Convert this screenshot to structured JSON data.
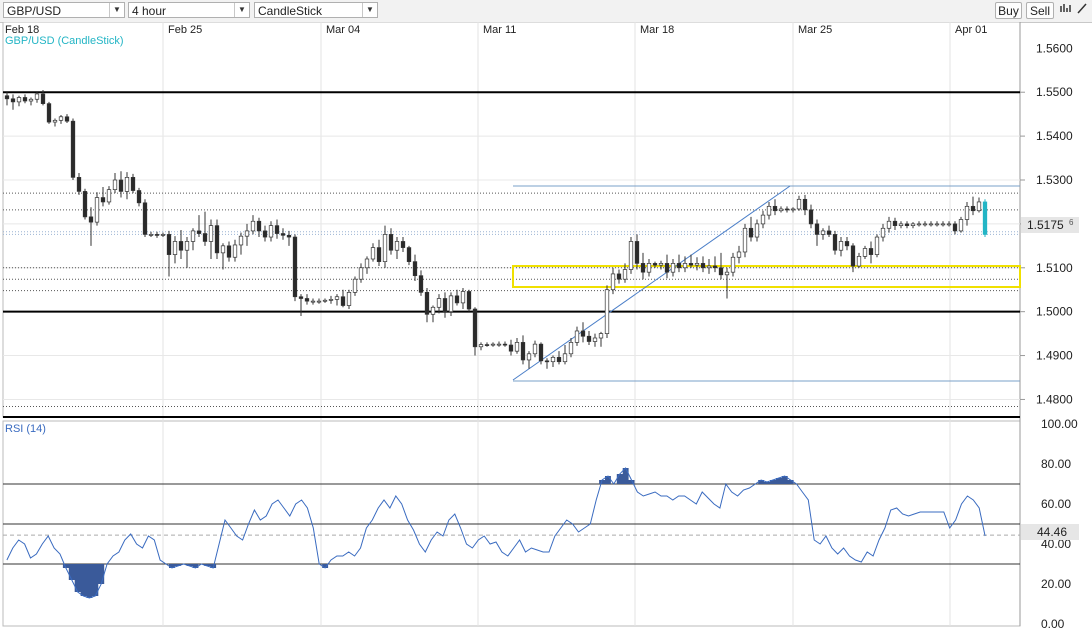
{
  "toolbar": {
    "symbol": "GBP/USD",
    "timeframe": "4 hour",
    "chart_type": "CandleStick",
    "buy_label": "Buy",
    "sell_label": "Sell"
  },
  "price_panel": {
    "label": "GBP/USD (CandleStick)",
    "current_price": "1.5175",
    "current_price_super": "6"
  },
  "rsi_panel": {
    "label": "RSI (14)",
    "current_value": "44.46"
  },
  "colors": {
    "candle_up": "#ffffff",
    "candle_down": "#2a2a2a",
    "rsi_line": "#3a6bc0",
    "rsi_fill": "#3a5a9a",
    "label_teal": "#23b5c5",
    "trendline": "#4a7ec8",
    "zone": "#f0e000"
  },
  "chart_data": {
    "type": "candlestick",
    "x_ticks": [
      "Feb 18",
      "Feb 25",
      "Mar 04",
      "Mar 11",
      "Mar 18",
      "Mar 25",
      "Apr 01"
    ],
    "y_ticks": [
      "1.5500",
      "1.5400",
      "1.5300",
      "1.5200",
      "1.5100",
      "1.5000",
      "1.4900",
      "1.4800"
    ],
    "y_top_partial": "1.5600",
    "ylim": [
      1.476,
      1.566
    ],
    "ohlc": [
      [
        1.5492,
        1.55,
        1.547,
        1.5485
      ],
      [
        1.5485,
        1.5495,
        1.546,
        1.5478
      ],
      [
        1.5478,
        1.5492,
        1.5468,
        1.5488
      ],
      [
        1.5488,
        1.5495,
        1.5475,
        1.548
      ],
      [
        1.548,
        1.5488,
        1.547,
        1.5484
      ],
      [
        1.5484,
        1.55,
        1.5476,
        1.5496
      ],
      [
        1.5496,
        1.5505,
        1.547,
        1.5474
      ],
      [
        1.5474,
        1.5478,
        1.5428,
        1.5432
      ],
      [
        1.5432,
        1.544,
        1.5422,
        1.5436
      ],
      [
        1.5436,
        1.5448,
        1.5428,
        1.5444
      ],
      [
        1.5444,
        1.545,
        1.543,
        1.5434
      ],
      [
        1.5434,
        1.544,
        1.53,
        1.5306
      ],
      [
        1.5306,
        1.5316,
        1.5266,
        1.5274
      ],
      [
        1.5274,
        1.528,
        1.521,
        1.5216
      ],
      [
        1.5216,
        1.5238,
        1.515,
        1.5204
      ],
      [
        1.5204,
        1.5272,
        1.5196,
        1.526
      ],
      [
        1.526,
        1.5284,
        1.524,
        1.525
      ],
      [
        1.525,
        1.5286,
        1.5244,
        1.5278
      ],
      [
        1.5278,
        1.5316,
        1.527,
        1.53
      ],
      [
        1.53,
        1.532,
        1.526,
        1.5274
      ],
      [
        1.5274,
        1.5318,
        1.5256,
        1.5306
      ],
      [
        1.5306,
        1.5314,
        1.527,
        1.5276
      ],
      [
        1.5276,
        1.5282,
        1.524,
        1.5248
      ],
      [
        1.5248,
        1.5256,
        1.517,
        1.5176
      ],
      [
        1.5176,
        1.5182,
        1.517,
        1.5176
      ],
      [
        1.5176,
        1.5182,
        1.5168,
        1.5174
      ],
      [
        1.5174,
        1.518,
        1.517,
        1.5176
      ],
      [
        1.5176,
        1.5184,
        1.508,
        1.513
      ],
      [
        1.513,
        1.5172,
        1.511,
        1.516
      ],
      [
        1.516,
        1.5186,
        1.512,
        1.514
      ],
      [
        1.514,
        1.517,
        1.51,
        1.516
      ],
      [
        1.516,
        1.519,
        1.514,
        1.5184
      ],
      [
        1.5184,
        1.522,
        1.517,
        1.5178
      ],
      [
        1.5178,
        1.5228,
        1.515,
        1.516
      ],
      [
        1.516,
        1.521,
        1.512,
        1.5196
      ],
      [
        1.5196,
        1.521,
        1.512,
        1.5134
      ],
      [
        1.5134,
        1.5156,
        1.5096,
        1.515
      ],
      [
        1.515,
        1.516,
        1.5114,
        1.5124
      ],
      [
        1.5124,
        1.5164,
        1.5114,
        1.5152
      ],
      [
        1.5152,
        1.518,
        1.513,
        1.5172
      ],
      [
        1.5172,
        1.52,
        1.515,
        1.5184
      ],
      [
        1.5184,
        1.522,
        1.5176,
        1.5206
      ],
      [
        1.5206,
        1.5214,
        1.517,
        1.5184
      ],
      [
        1.5184,
        1.5196,
        1.516,
        1.517
      ],
      [
        1.517,
        1.5206,
        1.516,
        1.5196
      ],
      [
        1.5196,
        1.521,
        1.5166,
        1.5178
      ],
      [
        1.5178,
        1.519,
        1.5164,
        1.5174
      ],
      [
        1.5174,
        1.5184,
        1.515,
        1.517
      ],
      [
        1.517,
        1.5176,
        1.5024,
        1.5034
      ],
      [
        1.5034,
        1.504,
        1.499,
        1.503
      ],
      [
        1.503,
        1.504,
        1.5016,
        1.5024
      ],
      [
        1.5024,
        1.503,
        1.5016,
        1.5024
      ],
      [
        1.5024,
        1.503,
        1.5018,
        1.5024
      ],
      [
        1.5024,
        1.503,
        1.502,
        1.5026
      ],
      [
        1.5026,
        1.5036,
        1.5018,
        1.5028
      ],
      [
        1.5028,
        1.504,
        1.5014,
        1.5034
      ],
      [
        1.5034,
        1.505,
        1.501,
        1.5014
      ],
      [
        1.5014,
        1.505,
        1.5006,
        1.5044
      ],
      [
        1.5044,
        1.508,
        1.5036,
        1.5074
      ],
      [
        1.5074,
        1.511,
        1.5066,
        1.51
      ],
      [
        1.51,
        1.5126,
        1.5086,
        1.512
      ],
      [
        1.512,
        1.5156,
        1.5114,
        1.5146
      ],
      [
        1.5146,
        1.5164,
        1.5104,
        1.5114
      ],
      [
        1.5114,
        1.5196,
        1.51,
        1.5176
      ],
      [
        1.5176,
        1.519,
        1.513,
        1.514
      ],
      [
        1.514,
        1.517,
        1.512,
        1.516
      ],
      [
        1.516,
        1.517,
        1.5136,
        1.5146
      ],
      [
        1.5146,
        1.515,
        1.5106,
        1.5114
      ],
      [
        1.5114,
        1.513,
        1.507,
        1.5082
      ],
      [
        1.5082,
        1.5094,
        1.5036,
        1.5044
      ],
      [
        1.5044,
        1.5054,
        1.4976,
        1.4994
      ],
      [
        1.4994,
        1.5014,
        1.4976,
        1.501
      ],
      [
        1.501,
        1.504,
        1.4996,
        1.503
      ],
      [
        1.503,
        1.5044,
        1.4986,
        1.5
      ],
      [
        1.5,
        1.5044,
        1.499,
        1.5036
      ],
      [
        1.5036,
        1.505,
        1.5014,
        1.502
      ],
      [
        1.502,
        1.5054,
        1.5006,
        1.5046
      ],
      [
        1.5046,
        1.505,
        1.5,
        1.5006
      ],
      [
        1.5006,
        1.501,
        1.49,
        1.492
      ],
      [
        1.492,
        1.493,
        1.4912,
        1.4925
      ],
      [
        1.4925,
        1.493,
        1.492,
        1.4924
      ],
      [
        1.4924,
        1.493,
        1.492,
        1.4926
      ],
      [
        1.4926,
        1.4932,
        1.492,
        1.4926
      ],
      [
        1.4926,
        1.4932,
        1.492,
        1.4924
      ],
      [
        1.4924,
        1.4936,
        1.49,
        1.491
      ],
      [
        1.491,
        1.494,
        1.4904,
        1.493
      ],
      [
        1.493,
        1.4946,
        1.488,
        1.489
      ],
      [
        1.489,
        1.491,
        1.487,
        1.4904
      ],
      [
        1.4904,
        1.4934,
        1.4896,
        1.4926
      ],
      [
        1.4926,
        1.493,
        1.488,
        1.4888
      ],
      [
        1.4888,
        1.4894,
        1.487,
        1.4886
      ],
      [
        1.4886,
        1.49,
        1.4874,
        1.4896
      ],
      [
        1.4896,
        1.491,
        1.488,
        1.4886
      ],
      [
        1.4886,
        1.4924,
        1.488,
        1.4904
      ],
      [
        1.4904,
        1.494,
        1.4896,
        1.493
      ],
      [
        1.493,
        1.4966,
        1.4922,
        1.4956
      ],
      [
        1.4956,
        1.4976,
        1.493,
        1.4944
      ],
      [
        1.4944,
        1.4956,
        1.4924,
        1.4932
      ],
      [
        1.4932,
        1.495,
        1.492,
        1.494
      ],
      [
        1.494,
        1.4954,
        1.492,
        1.495
      ],
      [
        1.495,
        1.506,
        1.494,
        1.505
      ],
      [
        1.505,
        1.51,
        1.504,
        1.5086
      ],
      [
        1.5086,
        1.5096,
        1.5064,
        1.5074
      ],
      [
        1.5074,
        1.511,
        1.5066,
        1.5096
      ],
      [
        1.5096,
        1.517,
        1.5086,
        1.516
      ],
      [
        1.516,
        1.5176,
        1.5096,
        1.511
      ],
      [
        1.511,
        1.5134,
        1.5074,
        1.509
      ],
      [
        1.509,
        1.512,
        1.508,
        1.511
      ],
      [
        1.511,
        1.5114,
        1.51,
        1.5106
      ],
      [
        1.5106,
        1.5116,
        1.5096,
        1.511
      ],
      [
        1.511,
        1.513,
        1.5076,
        1.509
      ],
      [
        1.509,
        1.512,
        1.508,
        1.511
      ],
      [
        1.511,
        1.513,
        1.509,
        1.51
      ],
      [
        1.51,
        1.5126,
        1.509,
        1.511
      ],
      [
        1.511,
        1.513,
        1.51,
        1.5106
      ],
      [
        1.5106,
        1.5124,
        1.5094,
        1.511
      ],
      [
        1.511,
        1.5126,
        1.509,
        1.51
      ],
      [
        1.51,
        1.512,
        1.5086,
        1.5104
      ],
      [
        1.5104,
        1.5126,
        1.509,
        1.51
      ],
      [
        1.51,
        1.5134,
        1.5074,
        1.5084
      ],
      [
        1.5084,
        1.51,
        1.503,
        1.509
      ],
      [
        1.509,
        1.5134,
        1.508,
        1.5124
      ],
      [
        1.5124,
        1.515,
        1.511,
        1.5136
      ],
      [
        1.5136,
        1.52,
        1.5124,
        1.519
      ],
      [
        1.519,
        1.5216,
        1.516,
        1.517
      ],
      [
        1.517,
        1.521,
        1.516,
        1.52
      ],
      [
        1.52,
        1.523,
        1.519,
        1.522
      ],
      [
        1.522,
        1.525,
        1.521,
        1.524
      ],
      [
        1.524,
        1.5256,
        1.522,
        1.523
      ],
      [
        1.523,
        1.524,
        1.5226,
        1.5234
      ],
      [
        1.5234,
        1.524,
        1.5226,
        1.5232
      ],
      [
        1.5232,
        1.5238,
        1.5226,
        1.5234
      ],
      [
        1.5234,
        1.5264,
        1.523,
        1.5256
      ],
      [
        1.5256,
        1.5266,
        1.522,
        1.5232
      ],
      [
        1.5232,
        1.5244,
        1.519,
        1.52
      ],
      [
        1.52,
        1.521,
        1.515,
        1.5176
      ],
      [
        1.5176,
        1.519,
        1.5164,
        1.5184
      ],
      [
        1.5184,
        1.5196,
        1.517,
        1.5176
      ],
      [
        1.5176,
        1.5184,
        1.513,
        1.514
      ],
      [
        1.514,
        1.517,
        1.5126,
        1.516
      ],
      [
        1.516,
        1.517,
        1.514,
        1.515
      ],
      [
        1.515,
        1.5156,
        1.509,
        1.5104
      ],
      [
        1.5104,
        1.5134,
        1.51,
        1.5126
      ],
      [
        1.5126,
        1.515,
        1.512,
        1.5144
      ],
      [
        1.5144,
        1.516,
        1.511,
        1.513
      ],
      [
        1.513,
        1.5176,
        1.5124,
        1.517
      ],
      [
        1.517,
        1.52,
        1.516,
        1.519
      ],
      [
        1.519,
        1.5216,
        1.518,
        1.5206
      ],
      [
        1.5206,
        1.5214,
        1.5186,
        1.5196
      ],
      [
        1.5196,
        1.5206,
        1.519,
        1.52
      ],
      [
        1.52,
        1.5206,
        1.519,
        1.5196
      ],
      [
        1.5196,
        1.5204,
        1.519,
        1.52
      ],
      [
        1.52,
        1.5206,
        1.5194,
        1.52
      ],
      [
        1.52,
        1.5206,
        1.5194,
        1.52
      ],
      [
        1.52,
        1.5206,
        1.5194,
        1.52
      ],
      [
        1.52,
        1.5206,
        1.5194,
        1.52
      ],
      [
        1.52,
        1.5206,
        1.5194,
        1.52
      ],
      [
        1.52,
        1.5206,
        1.5194,
        1.52
      ],
      [
        1.52,
        1.5206,
        1.5176,
        1.5184
      ],
      [
        1.5184,
        1.5216,
        1.518,
        1.521
      ],
      [
        1.521,
        1.525,
        1.5196,
        1.524
      ],
      [
        1.524,
        1.5262,
        1.522,
        1.523
      ],
      [
        1.523,
        1.526,
        1.5226,
        1.525
      ],
      [
        1.525,
        1.5256,
        1.517,
        1.5176
      ]
    ],
    "horizontal_levels": {
      "solid": [
        1.55,
        1.5,
        1.476
      ],
      "dotted": [
        1.527,
        1.5232,
        1.51,
        1.5074,
        1.5048,
        1.4784
      ],
      "light": [
        1.5182,
        1.5176
      ]
    },
    "rsi": {
      "label": "RSI (14)",
      "y_ticks": [
        "100.00",
        "80.00",
        "60.00",
        "40.00",
        "20.00",
        "0.00"
      ],
      "ylim": [
        0,
        100
      ],
      "levels": [
        70,
        50,
        30
      ],
      "values": [
        32,
        38,
        42,
        40,
        33,
        35,
        40,
        44,
        38,
        35,
        28,
        22,
        16,
        14,
        13,
        14,
        20,
        30,
        34,
        36,
        42,
        45,
        40,
        38,
        44,
        42,
        32,
        30,
        28,
        29,
        30,
        29,
        28,
        30,
        29,
        28,
        40,
        52,
        48,
        44,
        42,
        50,
        57,
        52,
        54,
        60,
        62,
        58,
        54,
        60,
        62,
        58,
        48,
        30,
        28,
        32,
        34,
        34,
        36,
        34,
        38,
        48,
        52,
        58,
        62,
        58,
        64,
        60,
        52,
        47,
        40,
        36,
        42,
        46,
        44,
        52,
        55,
        48,
        40,
        38,
        42,
        44,
        40,
        41,
        36,
        34,
        38,
        42,
        36,
        38,
        37,
        36,
        36,
        44,
        48,
        52,
        50,
        46,
        48,
        50,
        62,
        72,
        74,
        70,
        75,
        78,
        72,
        66,
        64,
        65,
        66,
        64,
        64,
        62,
        64,
        64,
        62,
        60,
        66,
        63,
        60,
        58,
        70,
        66,
        64,
        67,
        68,
        70,
        72,
        71,
        72,
        73,
        74,
        72,
        70,
        66,
        62,
        42,
        40,
        44,
        38,
        35,
        38,
        34,
        32,
        31,
        36,
        34,
        42,
        48,
        57,
        58,
        55,
        54,
        55,
        56,
        56,
        56,
        56,
        56,
        48,
        52,
        60,
        64,
        62,
        58,
        44
      ]
    }
  }
}
